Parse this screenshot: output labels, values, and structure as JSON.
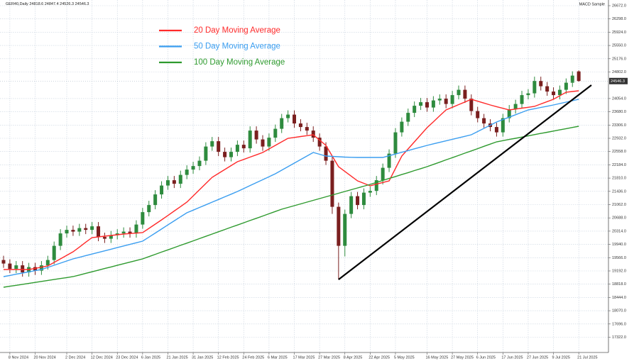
{
  "chart_data": {
    "type": "candlestick",
    "symbol": "GER40,Daily",
    "indicator": "MACD Sample",
    "up_color": "#2e8b3e",
    "down_color": "#7a1f1f",
    "grid": true,
    "xlim": [
      -0.56,
      95.7
    ],
    "ylim": [
      16912,
      26752
    ],
    "xticks": [
      {
        "value": 1,
        "label": "8 Nov 2024"
      },
      {
        "value": 5,
        "label": "20 Nov 2024"
      },
      {
        "value": 10,
        "label": "2 Dec 2024"
      },
      {
        "value": 14,
        "label": "12 Dec 2024"
      },
      {
        "value": 18,
        "label": "23 Dec 2024"
      },
      {
        "value": 22,
        "label": "6 Jan 2025"
      },
      {
        "value": 26,
        "label": "21 Jan 2025"
      },
      {
        "value": 30,
        "label": "31 Jan 2025"
      },
      {
        "value": 34,
        "label": "12 Feb 2025"
      },
      {
        "value": 38,
        "label": "24 Feb 2025"
      },
      {
        "value": 42,
        "label": "6 Mar 2025"
      },
      {
        "value": 46,
        "label": "17 Mar 2025"
      },
      {
        "value": 50,
        "label": "27 Mar 2025"
      },
      {
        "value": 54,
        "label": "8 Apr 2025"
      },
      {
        "value": 58,
        "label": "22 Apr 2025"
      },
      {
        "value": 62,
        "label": "5 May 2025"
      },
      {
        "value": 67,
        "label": "16 May 2025"
      },
      {
        "value": 71,
        "label": "27 May 2025"
      },
      {
        "value": 75,
        "label": "6 Jun 2025"
      },
      {
        "value": 79,
        "label": "17 Jun 2025"
      },
      {
        "value": 83,
        "label": "27 Jun 2025"
      },
      {
        "value": 87,
        "label": "9 Jul 2025"
      },
      {
        "value": 91,
        "label": "21 Jul 2025"
      }
    ],
    "yticks": [
      {
        "value": 26672,
        "label": "26672.0"
      },
      {
        "value": 26298,
        "label": "26298.0"
      },
      {
        "value": 25924,
        "label": "25924.0"
      },
      {
        "value": 25550,
        "label": "25550.0"
      },
      {
        "value": 25176,
        "label": "25176.0"
      },
      {
        "value": 24802,
        "label": "24802.0"
      },
      {
        "value": 24054,
        "label": "24054.0"
      },
      {
        "value": 23680,
        "label": "23680.0"
      },
      {
        "value": 23306,
        "label": "23306.0"
      },
      {
        "value": 22932,
        "label": "22932.0"
      },
      {
        "value": 22558,
        "label": "22558.0"
      },
      {
        "value": 22184,
        "label": "22184.0"
      },
      {
        "value": 21810,
        "label": "21810.0"
      },
      {
        "value": 21436,
        "label": "21436.0"
      },
      {
        "value": 21062,
        "label": "21062.0"
      },
      {
        "value": 20688,
        "label": "20688.0"
      },
      {
        "value": 20314,
        "label": "20314.0"
      },
      {
        "value": 19940,
        "label": "19940.0"
      },
      {
        "value": 19566,
        "label": "19566.0"
      },
      {
        "value": 19192,
        "label": "19192.0"
      },
      {
        "value": 18818,
        "label": "18818.0"
      },
      {
        "value": 18444,
        "label": "18444.0"
      },
      {
        "value": 18070,
        "label": "18070.0"
      },
      {
        "value": 17696,
        "label": "17696.0"
      },
      {
        "value": 17322,
        "label": "17322.0"
      }
    ],
    "open": [
      19500,
      19400,
      19250,
      19350,
      19150,
      19300,
      19200,
      19350,
      19500,
      19900,
      20250,
      20350,
      20300,
      20400,
      20350,
      20450,
      20150,
      20100,
      20200,
      20250,
      20300,
      20250,
      20500,
      20850,
      21050,
      21350,
      21600,
      21750,
      21650,
      21900,
      22050,
      22150,
      22300,
      22700,
      22850,
      22550,
      22400,
      22550,
      22750,
      22650,
      23150,
      22900,
      22700,
      22950,
      23200,
      23500,
      23600,
      23350,
      23250,
      23150,
      22950,
      22700,
      22300,
      21000,
      19900,
      20800,
      21300,
      21050,
      21400,
      21450,
      21750,
      22100,
      22500,
      23100,
      23400,
      23650,
      23850,
      23950,
      23800,
      24000,
      24050,
      23900,
      24150,
      24300,
      24050,
      23700,
      23500,
      23350,
      23250,
      23100,
      23500,
      23750,
      23900,
      24150,
      24200,
      24550,
      24400,
      24250,
      24150,
      24300,
      24500,
      24818.6
    ],
    "high": [
      19620,
      19520,
      19470,
      19470,
      19420,
      19420,
      19470,
      19620,
      20020,
      20370,
      20470,
      20470,
      20520,
      20520,
      20570,
      20570,
      20270,
      20320,
      20370,
      20420,
      20420,
      20620,
      20970,
      21170,
      21470,
      21720,
      21870,
      21870,
      22020,
      22170,
      22270,
      22420,
      22820,
      22970,
      22970,
      22670,
      22670,
      22870,
      22870,
      23270,
      23270,
      23020,
      23070,
      23320,
      23620,
      23720,
      23720,
      23470,
      23370,
      23270,
      23070,
      22820,
      22420,
      21120,
      20920,
      21420,
      21420,
      21520,
      21570,
      21870,
      22220,
      22620,
      23220,
      23520,
      23770,
      23970,
      24070,
      24070,
      24120,
      24170,
      24170,
      24270,
      24420,
      24420,
      24170,
      23820,
      23620,
      23470,
      23370,
      23620,
      23870,
      24020,
      24270,
      24320,
      24670,
      24670,
      24520,
      24370,
      24420,
      24620,
      24820,
      24847.4
    ],
    "low": [
      19280,
      19130,
      19130,
      19030,
      19030,
      19080,
      19080,
      19230,
      19380,
      19780,
      20130,
      20180,
      20180,
      20230,
      20230,
      20030,
      19980,
      19980,
      20080,
      20130,
      20130,
      20130,
      20380,
      20730,
      20930,
      21230,
      21480,
      21530,
      21530,
      21780,
      21930,
      22030,
      22180,
      22580,
      22430,
      22280,
      22280,
      22430,
      22530,
      22530,
      22780,
      22580,
      22580,
      22830,
      23080,
      23380,
      23230,
      23130,
      23030,
      22830,
      22580,
      22180,
      20800,
      18950,
      19600,
      20680,
      20930,
      20930,
      21280,
      21330,
      21630,
      21980,
      22380,
      22980,
      23280,
      23530,
      23730,
      23680,
      23680,
      23880,
      23780,
      23780,
      24030,
      23930,
      23580,
      23380,
      23230,
      23130,
      22980,
      22980,
      23380,
      23630,
      23780,
      24030,
      24080,
      24280,
      24130,
      24030,
      24030,
      24180,
      24380,
      24526.3
    ],
    "close": [
      19400,
      19250,
      19350,
      19150,
      19300,
      19200,
      19350,
      19500,
      19900,
      20250,
      20350,
      20300,
      20400,
      20350,
      20450,
      20150,
      20100,
      20200,
      20250,
      20300,
      20250,
      20500,
      20850,
      21050,
      21350,
      21600,
      21750,
      21650,
      21900,
      22050,
      22150,
      22300,
      22700,
      22850,
      22550,
      22400,
      22550,
      22750,
      22650,
      23150,
      22900,
      22700,
      22950,
      23200,
      23500,
      23600,
      23350,
      23250,
      23150,
      22950,
      22700,
      22300,
      21000,
      19900,
      20800,
      21300,
      21050,
      21400,
      21450,
      21750,
      22100,
      22500,
      23100,
      23400,
      23650,
      23850,
      23950,
      23800,
      24000,
      24050,
      23900,
      24150,
      24300,
      24050,
      23700,
      23500,
      23350,
      23250,
      23100,
      23500,
      23750,
      23900,
      24150,
      24200,
      24550,
      24400,
      24250,
      24150,
      24300,
      24500,
      24700,
      24546.3
    ],
    "series": [
      {
        "name": "20 Day Moving Average",
        "color": "#ff2a2a",
        "values": [
          19232,
          19232,
          19232,
          19232,
          19232,
          19265,
          19299,
          19332,
          19432,
          19532,
          19632,
          19732,
          19865,
          19999,
          20132,
          20152,
          20172,
          20192,
          20212,
          20232,
          20245,
          20259,
          20272,
          20392,
          20512,
          20632,
          20757,
          20882,
          21007,
          21132,
          21307,
          21482,
          21657,
          21832,
          21942,
          22052,
          22162,
          22272,
          22337,
          22402,
          22467,
          22532,
          22632,
          22732,
          22832,
          22932,
          22957,
          22982,
          23007,
          23032,
          22882,
          22732,
          22432,
          22132,
          21999,
          21865,
          21732,
          21662,
          21592,
          21639,
          21685,
          21732,
          22082,
          22432,
          22632,
          22832,
          23032,
          23232,
          23399,
          23565,
          23732,
          23807,
          23882,
          23957,
          24032,
          23979,
          23925,
          23872,
          23825,
          23779,
          23732,
          23757,
          23782,
          23807,
          23832,
          23899,
          23965,
          24032,
          24132,
          24232,
          24252,
          24272
        ]
      },
      {
        "name": "50 Day Moving Average",
        "color": "#3b9ef0",
        "values": [
          19032,
          19065,
          19099,
          19132,
          19165,
          19199,
          19232,
          19292,
          19352,
          19412,
          19472,
          19532,
          19577,
          19623,
          19668,
          19714,
          19759,
          19805,
          19850,
          19896,
          19941,
          19987,
          20032,
          20146,
          20261,
          20375,
          20489,
          20603,
          20718,
          20832,
          20907,
          20982,
          21057,
          21132,
          21207,
          21282,
          21357,
          21432,
          21515,
          21599,
          21682,
          21765,
          21849,
          21932,
          22032,
          22132,
          22232,
          22332,
          22432,
          22532,
          22482,
          22432,
          22422,
          22412,
          22402,
          22397,
          22392,
          22392,
          22392,
          22392,
          22392,
          22441,
          22489,
          22538,
          22586,
          22635,
          22684,
          22732,
          22775,
          22818,
          22861,
          22904,
          22946,
          22989,
          23032,
          23122,
          23212,
          23302,
          23392,
          23460,
          23528,
          23596,
          23664,
          23732,
          23767,
          23802,
          23837,
          23872,
          23912,
          23952,
          23992,
          24032
        ]
      },
      {
        "name": "100 Day Moving Average",
        "color": "#2e9a2e",
        "values": [
          18732,
          18759,
          18787,
          18814,
          18841,
          18868,
          18896,
          18923,
          18950,
          18978,
          19005,
          19032,
          19077,
          19123,
          19168,
          19214,
          19259,
          19305,
          19350,
          19396,
          19441,
          19487,
          19532,
          19596,
          19659,
          19723,
          19786,
          19850,
          19914,
          19977,
          20041,
          20105,
          20168,
          20232,
          20296,
          20359,
          20423,
          20486,
          20550,
          20614,
          20677,
          20741,
          20805,
          20868,
          20932,
          20982,
          21032,
          21082,
          21132,
          21182,
          21232,
          21282,
          21332,
          21382,
          21432,
          21482,
          21532,
          21582,
          21632,
          21688,
          21743,
          21799,
          21854,
          21910,
          21965,
          22021,
          22076,
          22132,
          22196,
          22259,
          22323,
          22387,
          22450,
          22514,
          22577,
          22641,
          22705,
          22768,
          22832,
          22866,
          22900,
          22933,
          22967,
          23001,
          23035,
          23069,
          23102,
          23136,
          23170,
          23204,
          23238,
          23272
        ]
      }
    ],
    "trendline": {
      "color": "#000000",
      "x": [
        53,
        93
      ],
      "values": [
        18950,
        24432
      ]
    }
  }
}
